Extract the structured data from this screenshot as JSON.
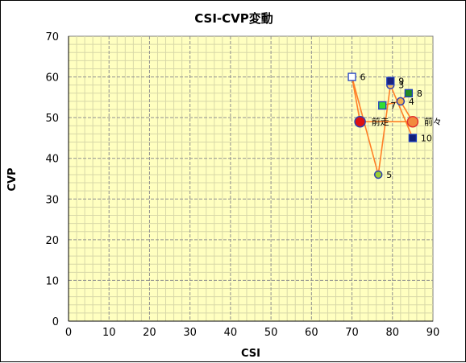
{
  "chart_data": {
    "type": "scatter",
    "title": "CSI-CVP変動",
    "xlabel": "CSI",
    "ylabel": "CVP",
    "xlim": [
      0,
      90
    ],
    "ylim": [
      0,
      70
    ],
    "xticks": [
      0,
      10,
      20,
      30,
      40,
      50,
      60,
      70,
      80,
      90
    ],
    "yticks": [
      0,
      10,
      20,
      30,
      40,
      50,
      60,
      70
    ],
    "grid": true,
    "grid_minor": true,
    "background": "#ffffc0",
    "line_color": "#ff7f27",
    "points": [
      {
        "label": "前々",
        "x": 85,
        "y": 49,
        "shape": "circle",
        "fill": "#f28a3c",
        "stroke": "#e03030",
        "size": "large"
      },
      {
        "label": "前走",
        "x": 72,
        "y": 49,
        "shape": "circle",
        "fill": "#dd1111",
        "stroke": "#3040b0",
        "size": "large"
      },
      {
        "label": "3",
        "x": 79.5,
        "y": 58,
        "shape": "circle",
        "fill": "#f5c060",
        "stroke": "#3040b0",
        "size": "small"
      },
      {
        "label": "4",
        "x": 82,
        "y": 54,
        "shape": "circle",
        "fill": "#f0b050",
        "stroke": "#3040b0",
        "size": "small"
      },
      {
        "label": "5",
        "x": 76.5,
        "y": 36,
        "shape": "circle",
        "fill": "#9acd32",
        "stroke": "#3040b0",
        "size": "small"
      },
      {
        "label": "6",
        "x": 70,
        "y": 60,
        "shape": "square",
        "fill": "#ffffff",
        "stroke": "#1f3fbf",
        "size": "small"
      },
      {
        "label": "7",
        "x": 77.5,
        "y": 53,
        "shape": "square",
        "fill": "#33dd33",
        "stroke": "#1f3fbf",
        "size": "small"
      },
      {
        "label": "8",
        "x": 84,
        "y": 56,
        "shape": "square",
        "fill": "#228b22",
        "stroke": "#1f3fbf",
        "size": "small"
      },
      {
        "label": "9",
        "x": 79.5,
        "y": 59,
        "shape": "square",
        "fill": "#1a237e",
        "stroke": "#1f3fbf",
        "size": "small"
      },
      {
        "label": "10",
        "x": 85,
        "y": 45,
        "shape": "square",
        "fill": "#10207a",
        "stroke": "#1f3fbf",
        "size": "small"
      }
    ],
    "connections": [
      [
        "前走",
        "前々"
      ],
      [
        "前走",
        "6"
      ],
      [
        "6",
        "5"
      ],
      [
        "5",
        "3"
      ],
      [
        "3",
        "10"
      ],
      [
        "前々",
        "4"
      ],
      [
        "4",
        "7"
      ],
      [
        "4",
        "8"
      ],
      [
        "9",
        "3"
      ]
    ]
  }
}
